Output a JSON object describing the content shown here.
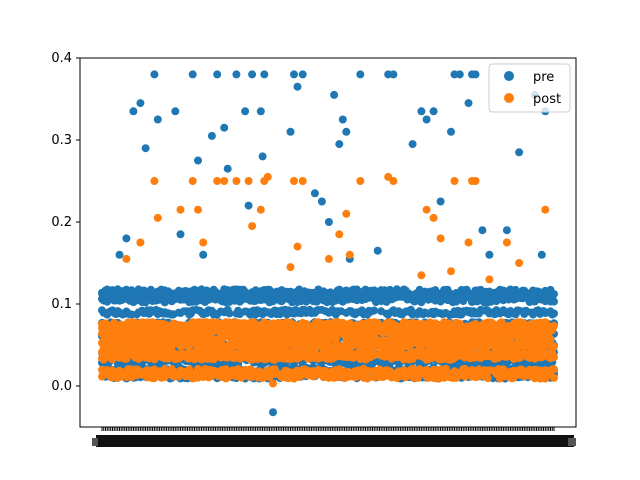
{
  "chart_data": {
    "type": "scatter",
    "xlabel": "",
    "ylabel": "",
    "ylim": [
      -0.05,
      0.4
    ],
    "yticks": [
      0.0,
      0.1,
      0.2,
      0.3,
      0.4
    ],
    "ytick_labels": [
      "0.0",
      "0.1",
      "0.2",
      "0.3",
      "0.4"
    ],
    "x_count": 260,
    "x_tick_labels_note": "dense overlapping category tick labels along the x axis (unreadable)",
    "legend": {
      "placement": "top-right"
    },
    "series": [
      {
        "name": "pre",
        "color": "#1f77b4",
        "bands": [
          0.115,
          0.11,
          0.105,
          0.09,
          0.075,
          0.062,
          0.05,
          0.04,
          0.03,
          0.02,
          0.012
        ],
        "outliers": [
          {
            "x": 10,
            "y": 0.16
          },
          {
            "x": 14,
            "y": 0.18
          },
          {
            "x": 18,
            "y": 0.335
          },
          {
            "x": 22,
            "y": 0.345
          },
          {
            "x": 25,
            "y": 0.29
          },
          {
            "x": 30,
            "y": 0.38
          },
          {
            "x": 32,
            "y": 0.325
          },
          {
            "x": 42,
            "y": 0.335
          },
          {
            "x": 45,
            "y": 0.185
          },
          {
            "x": 52,
            "y": 0.38
          },
          {
            "x": 55,
            "y": 0.275
          },
          {
            "x": 58,
            "y": 0.16
          },
          {
            "x": 63,
            "y": 0.305
          },
          {
            "x": 66,
            "y": 0.38
          },
          {
            "x": 70,
            "y": 0.315
          },
          {
            "x": 72,
            "y": 0.265
          },
          {
            "x": 77,
            "y": 0.38
          },
          {
            "x": 82,
            "y": 0.335
          },
          {
            "x": 84,
            "y": 0.22
          },
          {
            "x": 86,
            "y": 0.38
          },
          {
            "x": 91,
            "y": 0.335
          },
          {
            "x": 92,
            "y": 0.28
          },
          {
            "x": 93,
            "y": 0.38
          },
          {
            "x": 108,
            "y": 0.31
          },
          {
            "x": 110,
            "y": 0.38
          },
          {
            "x": 112,
            "y": 0.365
          },
          {
            "x": 115,
            "y": 0.38
          },
          {
            "x": 122,
            "y": 0.235
          },
          {
            "x": 126,
            "y": 0.225
          },
          {
            "x": 130,
            "y": 0.2
          },
          {
            "x": 133,
            "y": 0.355
          },
          {
            "x": 136,
            "y": 0.295
          },
          {
            "x": 138,
            "y": 0.325
          },
          {
            "x": 140,
            "y": 0.31
          },
          {
            "x": 142,
            "y": 0.155
          },
          {
            "x": 148,
            "y": 0.38
          },
          {
            "x": 158,
            "y": 0.165
          },
          {
            "x": 164,
            "y": 0.38
          },
          {
            "x": 167,
            "y": 0.38
          },
          {
            "x": 178,
            "y": 0.295
          },
          {
            "x": 183,
            "y": 0.335
          },
          {
            "x": 186,
            "y": 0.325
          },
          {
            "x": 190,
            "y": 0.335
          },
          {
            "x": 194,
            "y": 0.225
          },
          {
            "x": 200,
            "y": 0.31
          },
          {
            "x": 202,
            "y": 0.38
          },
          {
            "x": 205,
            "y": 0.38
          },
          {
            "x": 210,
            "y": 0.345
          },
          {
            "x": 212,
            "y": 0.38
          },
          {
            "x": 214,
            "y": 0.38
          },
          {
            "x": 218,
            "y": 0.19
          },
          {
            "x": 222,
            "y": 0.16
          },
          {
            "x": 232,
            "y": 0.19
          },
          {
            "x": 239,
            "y": 0.285
          },
          {
            "x": 248,
            "y": 0.355
          },
          {
            "x": 254,
            "y": 0.335
          },
          {
            "x": 252,
            "y": 0.16
          },
          {
            "x": 98,
            "y": -0.032
          }
        ]
      },
      {
        "name": "post",
        "color": "#ff7f0e",
        "bands": [
          0.075,
          0.07,
          0.065,
          0.058,
          0.05,
          0.04,
          0.035,
          0.018,
          0.012
        ],
        "outliers": [
          {
            "x": 14,
            "y": 0.155
          },
          {
            "x": 22,
            "y": 0.175
          },
          {
            "x": 30,
            "y": 0.25
          },
          {
            "x": 32,
            "y": 0.205
          },
          {
            "x": 45,
            "y": 0.215
          },
          {
            "x": 52,
            "y": 0.25
          },
          {
            "x": 55,
            "y": 0.215
          },
          {
            "x": 58,
            "y": 0.175
          },
          {
            "x": 66,
            "y": 0.25
          },
          {
            "x": 70,
            "y": 0.25
          },
          {
            "x": 77,
            "y": 0.25
          },
          {
            "x": 84,
            "y": 0.25
          },
          {
            "x": 86,
            "y": 0.195
          },
          {
            "x": 91,
            "y": 0.215
          },
          {
            "x": 93,
            "y": 0.25
          },
          {
            "x": 95,
            "y": 0.255
          },
          {
            "x": 108,
            "y": 0.145
          },
          {
            "x": 110,
            "y": 0.25
          },
          {
            "x": 112,
            "y": 0.17
          },
          {
            "x": 115,
            "y": 0.25
          },
          {
            "x": 130,
            "y": 0.155
          },
          {
            "x": 136,
            "y": 0.185
          },
          {
            "x": 140,
            "y": 0.21
          },
          {
            "x": 142,
            "y": 0.16
          },
          {
            "x": 148,
            "y": 0.25
          },
          {
            "x": 164,
            "y": 0.255
          },
          {
            "x": 167,
            "y": 0.25
          },
          {
            "x": 183,
            "y": 0.135
          },
          {
            "x": 186,
            "y": 0.215
          },
          {
            "x": 190,
            "y": 0.205
          },
          {
            "x": 194,
            "y": 0.18
          },
          {
            "x": 200,
            "y": 0.14
          },
          {
            "x": 202,
            "y": 0.25
          },
          {
            "x": 210,
            "y": 0.175
          },
          {
            "x": 212,
            "y": 0.25
          },
          {
            "x": 214,
            "y": 0.25
          },
          {
            "x": 222,
            "y": 0.13
          },
          {
            "x": 232,
            "y": 0.175
          },
          {
            "x": 239,
            "y": 0.15
          },
          {
            "x": 254,
            "y": 0.215
          },
          {
            "x": 98,
            "y": 0.003
          }
        ]
      }
    ]
  }
}
